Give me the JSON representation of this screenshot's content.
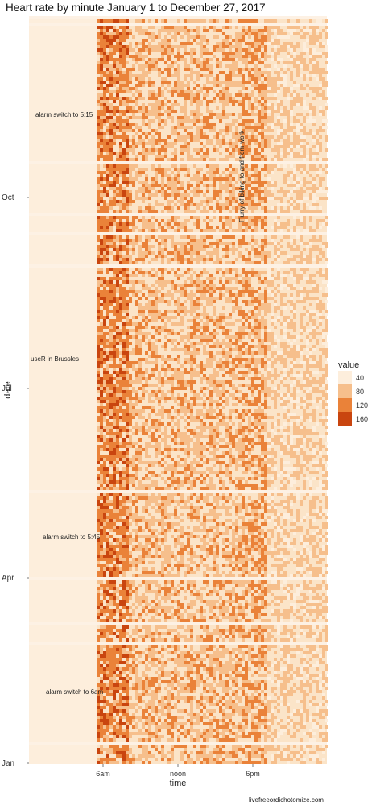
{
  "chart_data": {
    "type": "heatmap",
    "title": "Heart rate by minute January 1 to December 27, 2017",
    "xlabel": "time",
    "ylabel": "date",
    "x_ticks": [
      "6am",
      "noon",
      "6pm"
    ],
    "y_ticks": [
      "Jan",
      "Apr",
      "Jul",
      "Oct"
    ],
    "x_range_hours": [
      0,
      24
    ],
    "y_range": [
      "2017-01-01",
      "2017-12-27"
    ],
    "legend": {
      "title": "value",
      "placement": "right",
      "items": [
        {
          "label": "40",
          "color": "#fdeedc"
        },
        {
          "label": "80",
          "color": "#f6bf8c"
        },
        {
          "label": "120",
          "color": "#ea8239"
        },
        {
          "label": "160",
          "color": "#c9450f"
        }
      ]
    },
    "annotations": [
      {
        "text": "alarm switch to 5:15"
      },
      {
        "text": "useR in Brussles"
      },
      {
        "text": "alarm switch to 5:45"
      },
      {
        "text": "alarm switch to 6am"
      },
      {
        "text": "Flurry of biking to and from work"
      }
    ]
  },
  "credit": "livefreeordichotomize.com"
}
